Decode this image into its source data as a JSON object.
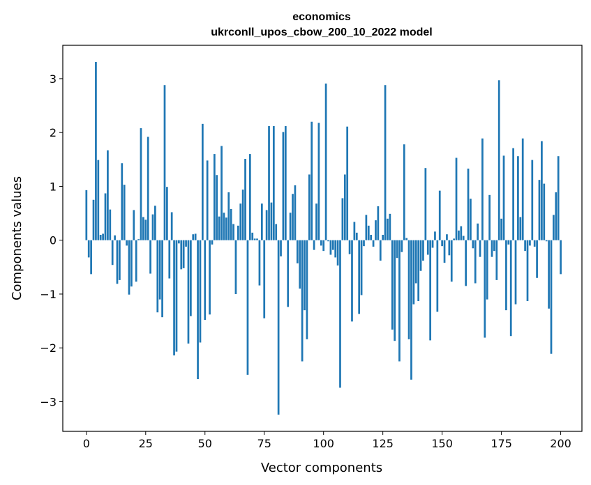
{
  "chart_data": {
    "type": "bar",
    "title": "economics",
    "subtitle": "ukrconll_upos_cbow_200_10_2022 model",
    "xlabel": "Vector components",
    "ylabel": "Components values",
    "xlim": [
      -9.95,
      208.95
    ],
    "ylim": [
      -3.55,
      3.62
    ],
    "x_ticks": [
      0,
      25,
      50,
      75,
      100,
      125,
      150,
      175,
      200
    ],
    "x_tick_labels": [
      "0",
      "25",
      "50",
      "75",
      "100",
      "125",
      "150",
      "175",
      "200"
    ],
    "y_ticks": [
      -3,
      -2,
      -1,
      0,
      1,
      2,
      3
    ],
    "y_tick_labels": [
      "−3",
      "−2",
      "−1",
      "0",
      "1",
      "2",
      "3"
    ],
    "grid": false,
    "bar_color": "#1f77b4",
    "values": [
      0.93,
      -0.32,
      -0.63,
      0.75,
      3.31,
      1.49,
      0.1,
      0.12,
      0.87,
      1.67,
      0.57,
      -0.46,
      0.09,
      -0.81,
      -0.74,
      1.43,
      1.03,
      -0.1,
      -1.01,
      -0.86,
      0.56,
      -0.77,
      0.02,
      2.08,
      0.43,
      0.38,
      1.92,
      -0.62,
      0.48,
      0.64,
      -1.34,
      -1.1,
      -1.43,
      2.88,
      0.99,
      -0.71,
      0.52,
      -2.14,
      -2.07,
      -0.06,
      -0.54,
      -0.52,
      -0.12,
      -1.92,
      -1.41,
      0.11,
      0.12,
      -2.58,
      -1.9,
      2.16,
      -1.48,
      1.48,
      -1.38,
      -0.08,
      1.6,
      1.21,
      0.44,
      1.75,
      0.51,
      0.42,
      0.89,
      0.58,
      0.3,
      -1.0,
      0.27,
      0.68,
      0.94,
      1.51,
      -2.5,
      1.6,
      0.14,
      0.03,
      0.03,
      -0.84,
      0.68,
      -1.45,
      0.56,
      2.12,
      0.7,
      2.12,
      0.3,
      -3.24,
      -0.3,
      2.01,
      2.12,
      -1.24,
      0.51,
      0.86,
      1.02,
      -0.43,
      -0.9,
      -2.25,
      -1.3,
      -1.84,
      1.22,
      2.2,
      -0.18,
      0.68,
      2.18,
      -0.1,
      -0.2,
      2.91,
      -0.02,
      -0.27,
      -0.18,
      -0.32,
      -0.47,
      -2.74,
      0.78,
      1.22,
      2.11,
      -0.26,
      -1.51,
      0.34,
      0.14,
      -1.37,
      -1.02,
      -0.11,
      0.47,
      0.27,
      0.1,
      -0.12,
      0.37,
      0.63,
      -0.38,
      0.1,
      2.88,
      0.4,
      0.49,
      -1.66,
      -1.87,
      -0.33,
      -2.25,
      -0.22,
      1.78,
      0.04,
      -1.84,
      -2.59,
      -1.19,
      -0.8,
      -1.13,
      -0.57,
      -0.38,
      1.34,
      -0.27,
      -1.86,
      -0.14,
      0.16,
      -1.33,
      0.92,
      -0.11,
      -0.42,
      0.11,
      -0.28,
      -0.77,
      0.03,
      1.53,
      0.18,
      0.26,
      0.08,
      -0.85,
      1.33,
      0.77,
      -0.15,
      -0.8,
      0.31,
      -0.31,
      1.89,
      -1.81,
      -1.1,
      0.84,
      -0.31,
      -0.2,
      -0.74,
      2.97,
      0.4,
      1.57,
      -1.3,
      -0.08,
      -1.78,
      1.71,
      -1.19,
      1.56,
      0.43,
      1.89,
      -0.2,
      -1.13,
      -0.1,
      1.49,
      -0.12,
      -0.7,
      1.12,
      1.84,
      1.05,
      -0.02,
      -1.27,
      -2.11,
      0.47,
      0.89,
      1.56,
      -0.63
    ]
  }
}
